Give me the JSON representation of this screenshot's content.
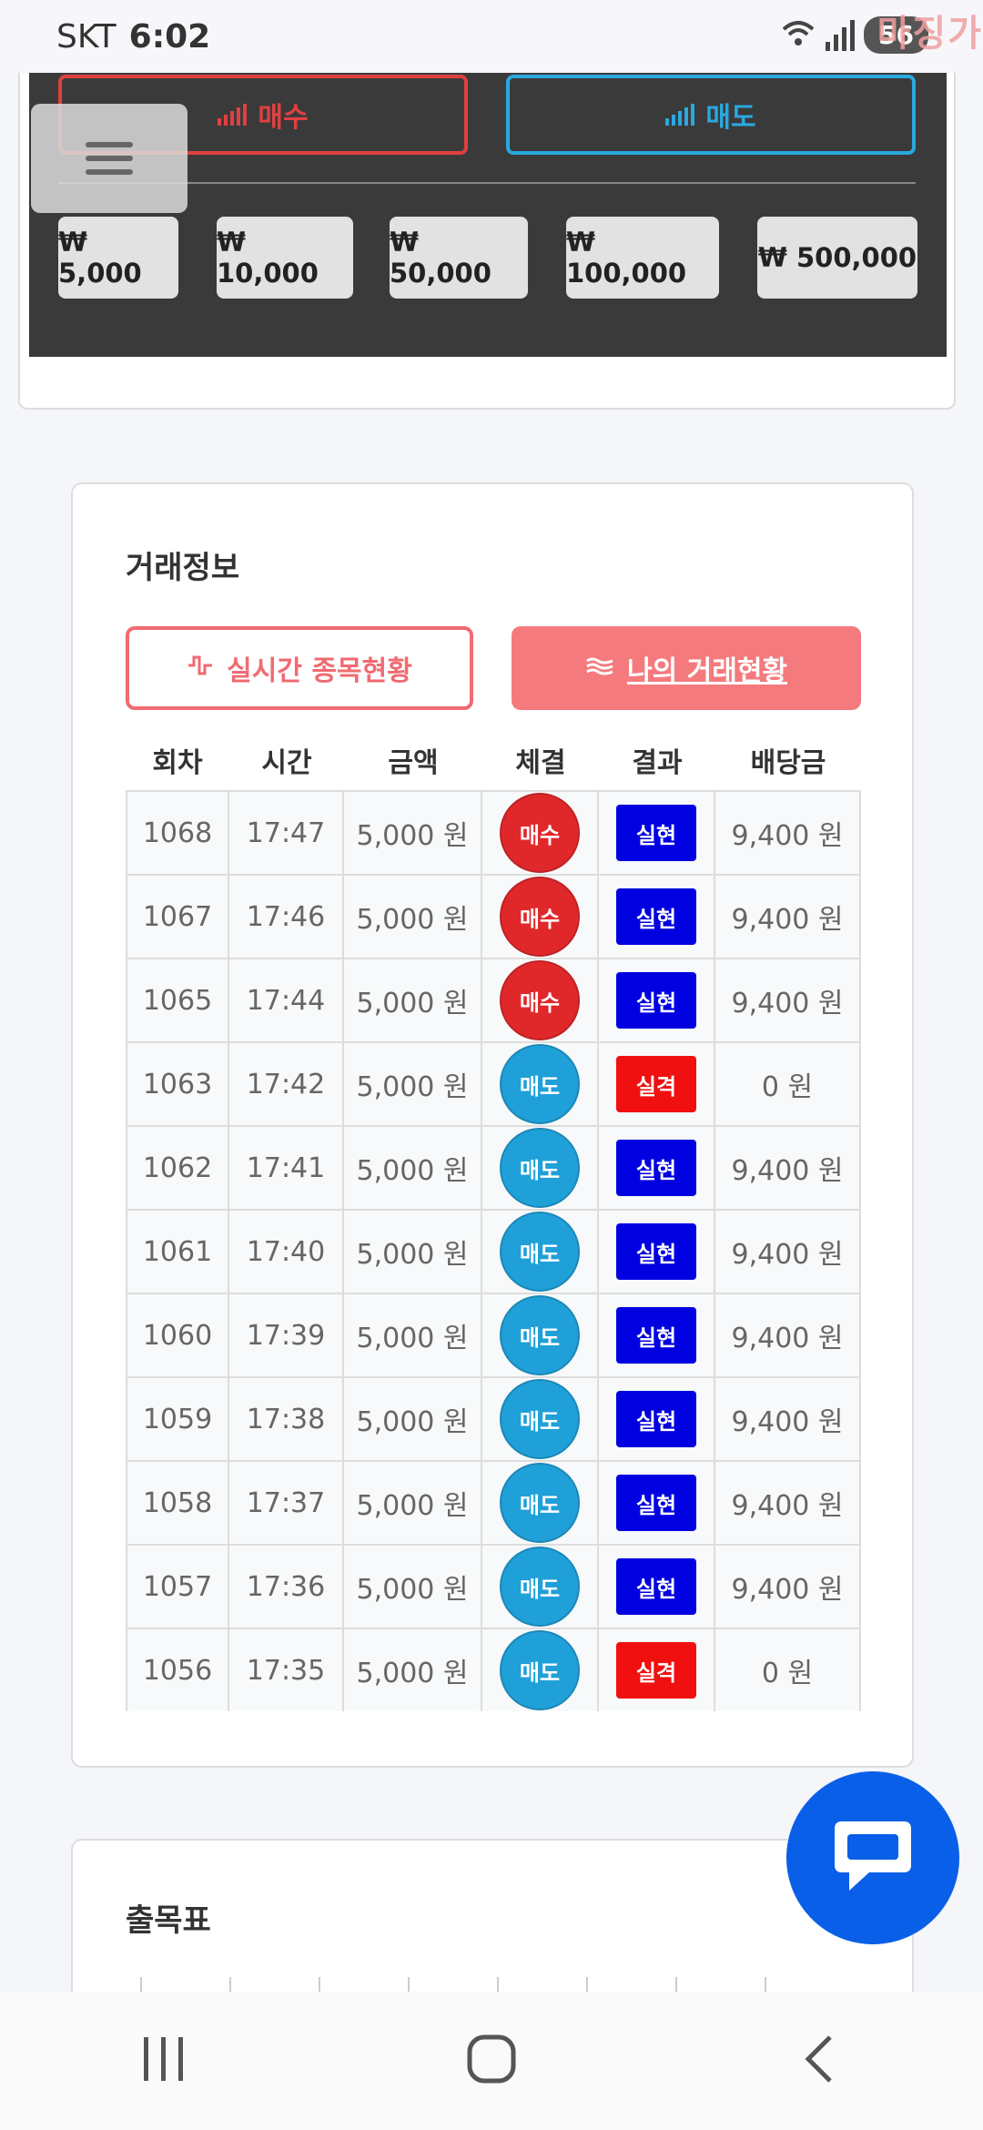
{
  "status_bar": {
    "carrier": "SKT",
    "time": "6:02",
    "battery": "56",
    "watermark": "마징가"
  },
  "trade_panel": {
    "buy_label": "매수",
    "sell_label": "매도",
    "amounts": [
      "₩ 5,000",
      "₩ 10,000",
      "₩ 50,000",
      "₩ 100,000",
      "₩ 500,000"
    ],
    "colors": {
      "buy": "#e04040",
      "sell": "#2aa8e0",
      "panel": "#3a3a3a"
    }
  },
  "trade_info": {
    "title": "거래정보",
    "tab_live": "실시간 종목현황",
    "tab_mine": "나의 거래현황",
    "columns": [
      "회차",
      "시간",
      "금액",
      "체결",
      "결과",
      "배당금"
    ],
    "rows": [
      {
        "round": "1068",
        "time": "17:47",
        "amount": "5,000 원",
        "side": "매수",
        "side_type": "buy",
        "result": "실현",
        "result_type": "win",
        "payout": "9,400 원"
      },
      {
        "round": "1067",
        "time": "17:46",
        "amount": "5,000 원",
        "side": "매수",
        "side_type": "buy",
        "result": "실현",
        "result_type": "win",
        "payout": "9,400 원"
      },
      {
        "round": "1065",
        "time": "17:44",
        "amount": "5,000 원",
        "side": "매수",
        "side_type": "buy",
        "result": "실현",
        "result_type": "win",
        "payout": "9,400 원"
      },
      {
        "round": "1063",
        "time": "17:42",
        "amount": "5,000 원",
        "side": "매도",
        "side_type": "sell",
        "result": "실격",
        "result_type": "lose",
        "payout": "0 원"
      },
      {
        "round": "1062",
        "time": "17:41",
        "amount": "5,000 원",
        "side": "매도",
        "side_type": "sell",
        "result": "실현",
        "result_type": "win",
        "payout": "9,400 원"
      },
      {
        "round": "1061",
        "time": "17:40",
        "amount": "5,000 원",
        "side": "매도",
        "side_type": "sell",
        "result": "실현",
        "result_type": "win",
        "payout": "9,400 원"
      },
      {
        "round": "1060",
        "time": "17:39",
        "amount": "5,000 원",
        "side": "매도",
        "side_type": "sell",
        "result": "실현",
        "result_type": "win",
        "payout": "9,400 원"
      },
      {
        "round": "1059",
        "time": "17:38",
        "amount": "5,000 원",
        "side": "매도",
        "side_type": "sell",
        "result": "실현",
        "result_type": "win",
        "payout": "9,400 원"
      },
      {
        "round": "1058",
        "time": "17:37",
        "amount": "5,000 원",
        "side": "매도",
        "side_type": "sell",
        "result": "실현",
        "result_type": "win",
        "payout": "9,400 원"
      },
      {
        "round": "1057",
        "time": "17:36",
        "amount": "5,000 원",
        "side": "매도",
        "side_type": "sell",
        "result": "실현",
        "result_type": "win",
        "payout": "9,400 원"
      },
      {
        "round": "1056",
        "time": "17:35",
        "amount": "5,000 원",
        "side": "매도",
        "side_type": "sell",
        "result": "실격",
        "result_type": "lose",
        "payout": "0 원"
      }
    ]
  },
  "chart_section": {
    "title": "출목표",
    "dots": [
      "buy",
      "sell",
      "buy",
      "sell",
      "buy",
      "sell",
      "buy",
      "sell"
    ]
  },
  "icons": {
    "menu": "hamburger-icon",
    "chat": "chat-bubble-icon",
    "nav_recent": "recent-apps-icon",
    "nav_home": "home-icon",
    "nav_back": "back-icon"
  }
}
